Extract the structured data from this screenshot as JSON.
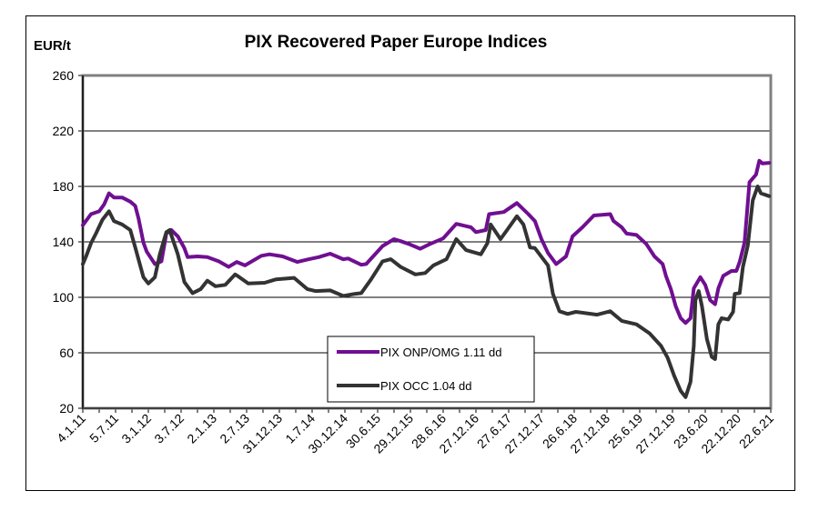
{
  "chart_data": {
    "type": "line",
    "title": "PIX Recovered Paper Europe Indices",
    "ylabel": "EUR/t",
    "xlabel": "",
    "ylim": [
      20,
      260
    ],
    "yticks": [
      20,
      60,
      100,
      140,
      180,
      220,
      260
    ],
    "grid": true,
    "legend_position": "bottom-center",
    "x_tick_labels": [
      "4.1.11",
      "5.7.11",
      "3.1.12",
      "3.7.12",
      "2.1.13",
      "2.7.13",
      "31.12.13",
      "1.7.14",
      "30.12.14",
      "30.6.15",
      "29.12.15",
      "28.6.16",
      "27.12.16",
      "27.6.17",
      "27.12.17",
      "26.6.18",
      "27.12.18",
      "25.6.19",
      "27.12.19",
      "23.6.20",
      "22.12.20",
      "22.6.21"
    ],
    "x_unit_note": "x positions are half-year tick indices: 0 = 4.1.11, 42 = 22.6.21",
    "xlim": [
      0,
      42
    ],
    "series": [
      {
        "name": "PIX ONP/OMG 1.11 dd",
        "color": "#6f0f91",
        "points": [
          [
            0,
            152
          ],
          [
            0.5,
            160
          ],
          [
            1,
            162
          ],
          [
            1.3,
            167
          ],
          [
            1.6,
            175
          ],
          [
            1.9,
            172
          ],
          [
            2.4,
            172
          ],
          [
            2.9,
            169
          ],
          [
            3.2,
            166
          ],
          [
            3.4,
            157
          ],
          [
            3.7,
            139.5
          ],
          [
            3.9,
            133
          ],
          [
            4.4,
            124
          ],
          [
            4.8,
            126
          ],
          [
            5.1,
            146
          ],
          [
            5.4,
            148.5
          ],
          [
            5.8,
            144
          ],
          [
            6.2,
            135.5
          ],
          [
            6.4,
            129
          ],
          [
            7,
            129.5
          ],
          [
            7.6,
            129
          ],
          [
            8.3,
            126
          ],
          [
            8.9,
            122
          ],
          [
            9.4,
            125.5
          ],
          [
            9.9,
            123
          ],
          [
            10.9,
            130
          ],
          [
            11.4,
            131
          ],
          [
            12.2,
            129.5
          ],
          [
            13.1,
            125.5
          ],
          [
            13.8,
            127.5
          ],
          [
            14.4,
            129
          ],
          [
            15.1,
            131.5
          ],
          [
            15.9,
            127.5
          ],
          [
            16.2,
            128
          ],
          [
            17,
            123.5
          ],
          [
            17.3,
            124
          ],
          [
            18.3,
            137
          ],
          [
            19,
            142
          ],
          [
            19.4,
            140.5
          ],
          [
            19.9,
            138.5
          ],
          [
            20.6,
            135
          ],
          [
            21.2,
            138.5
          ],
          [
            22,
            142.5
          ],
          [
            22.8,
            153
          ],
          [
            23.7,
            150.5
          ],
          [
            24,
            147
          ],
          [
            24.6,
            148.5
          ],
          [
            24.8,
            160
          ],
          [
            25.7,
            161.5
          ],
          [
            26.5,
            168
          ],
          [
            27.2,
            160
          ],
          [
            27.6,
            155
          ],
          [
            28,
            142
          ],
          [
            28.4,
            132
          ],
          [
            28.9,
            124
          ],
          [
            29.5,
            129.5
          ],
          [
            29.9,
            144
          ],
          [
            30.5,
            150.5
          ],
          [
            31.2,
            159
          ],
          [
            32.2,
            160
          ],
          [
            32.4,
            155
          ],
          [
            32.9,
            150.5
          ],
          [
            33.2,
            146
          ],
          [
            33.8,
            145
          ],
          [
            34.4,
            138.5
          ],
          [
            34.9,
            129.5
          ],
          [
            35.4,
            124
          ],
          [
            35.6,
            115.5
          ],
          [
            35.9,
            106
          ],
          [
            36.2,
            93.5
          ],
          [
            36.5,
            85
          ],
          [
            36.8,
            81.5
          ],
          [
            37.1,
            85
          ],
          [
            37.3,
            106.5
          ],
          [
            37.7,
            114.5
          ],
          [
            38,
            109
          ],
          [
            38.3,
            98
          ],
          [
            38.6,
            95
          ],
          [
            38.8,
            106.5
          ],
          [
            39.1,
            115.5
          ],
          [
            39.6,
            119
          ],
          [
            39.9,
            119
          ],
          [
            40.1,
            125.5
          ],
          [
            40.4,
            139.5
          ],
          [
            40.7,
            183
          ],
          [
            41.1,
            188.5
          ],
          [
            41.3,
            198.5
          ],
          [
            41.5,
            196.5
          ],
          [
            41.9,
            197
          ]
        ]
      },
      {
        "name": "PIX OCC 1.04 dd",
        "color": "#333333",
        "points": [
          [
            0,
            124
          ],
          [
            0.2,
            129.5
          ],
          [
            0.5,
            139
          ],
          [
            0.8,
            146
          ],
          [
            1.2,
            156
          ],
          [
            1.6,
            162
          ],
          [
            1.9,
            155
          ],
          [
            2.4,
            152.5
          ],
          [
            2.9,
            148.5
          ],
          [
            3.2,
            136
          ],
          [
            3.7,
            114.5
          ],
          [
            4,
            110
          ],
          [
            4.4,
            114.5
          ],
          [
            4.7,
            131
          ],
          [
            5.1,
            147
          ],
          [
            5.3,
            148.5
          ],
          [
            5.8,
            131
          ],
          [
            6.2,
            111
          ],
          [
            6.7,
            103
          ],
          [
            7.2,
            106
          ],
          [
            7.6,
            112
          ],
          [
            8.1,
            108
          ],
          [
            8.7,
            109
          ],
          [
            9.3,
            116.5
          ],
          [
            9.5,
            115
          ],
          [
            10.1,
            110
          ],
          [
            11.1,
            110.5
          ],
          [
            11.8,
            113
          ],
          [
            12.9,
            114
          ],
          [
            13.7,
            106
          ],
          [
            14.2,
            104.5
          ],
          [
            15.1,
            105
          ],
          [
            15.9,
            101
          ],
          [
            16.6,
            102.5
          ],
          [
            17,
            103
          ],
          [
            17.6,
            113
          ],
          [
            18.3,
            126
          ],
          [
            18.8,
            127.5
          ],
          [
            19.4,
            122
          ],
          [
            20.3,
            116.5
          ],
          [
            20.9,
            117.5
          ],
          [
            21.4,
            123
          ],
          [
            22.2,
            127.5
          ],
          [
            22.8,
            142
          ],
          [
            23.4,
            134
          ],
          [
            24.3,
            131
          ],
          [
            24.7,
            139
          ],
          [
            24.9,
            152.5
          ],
          [
            25.5,
            142
          ],
          [
            25.9,
            148.5
          ],
          [
            26.5,
            158.5
          ],
          [
            26.9,
            152.5
          ],
          [
            27.3,
            136
          ],
          [
            27.6,
            135.5
          ],
          [
            28.4,
            123
          ],
          [
            28.7,
            102.5
          ],
          [
            29.1,
            90
          ],
          [
            29.6,
            88
          ],
          [
            30.1,
            89.5
          ],
          [
            31.4,
            87.5
          ],
          [
            32.2,
            90
          ],
          [
            32.9,
            83
          ],
          [
            33.8,
            80.5
          ],
          [
            34.6,
            74
          ],
          [
            35.3,
            65
          ],
          [
            35.7,
            56.5
          ],
          [
            36.1,
            43.5
          ],
          [
            36.5,
            32.5
          ],
          [
            36.8,
            28
          ],
          [
            37.1,
            39
          ],
          [
            37.3,
            65
          ],
          [
            37.4,
            98
          ],
          [
            37.6,
            104.5
          ],
          [
            37.8,
            93.5
          ],
          [
            38.1,
            70
          ],
          [
            38.4,
            57
          ],
          [
            38.6,
            55.5
          ],
          [
            38.8,
            80.5
          ],
          [
            39,
            85
          ],
          [
            39.4,
            84
          ],
          [
            39.7,
            89.5
          ],
          [
            39.8,
            102.5
          ],
          [
            40.1,
            103
          ],
          [
            40.3,
            122
          ],
          [
            40.6,
            137.5
          ],
          [
            40.9,
            170
          ],
          [
            41.2,
            180
          ],
          [
            41.4,
            175
          ],
          [
            41.9,
            173
          ]
        ]
      }
    ]
  }
}
